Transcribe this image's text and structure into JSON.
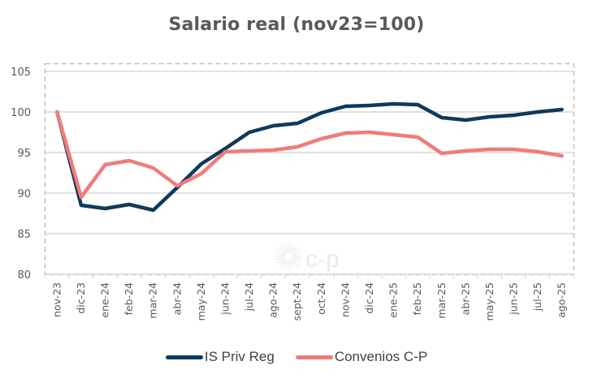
{
  "title": "Salario real (nov23=100)",
  "watermark": "c-p",
  "colors": {
    "is_priv_reg": "#0e3a5c",
    "convenios_cp": "#f07b7b",
    "grid": "#d9d9d9",
    "frame": "#bfbfbf",
    "text": "#595959"
  },
  "legend": [
    {
      "label": "IS Priv Reg",
      "color": "#0e3a5c"
    },
    {
      "label": "Convenios C-P",
      "color": "#f07b7b"
    }
  ],
  "chart_data": {
    "type": "line",
    "title": "Salario real (nov23=100)",
    "xlabel": "",
    "ylabel": "",
    "ylim": [
      80,
      105
    ],
    "yticks": [
      80,
      85,
      90,
      95,
      100,
      105
    ],
    "grid": true,
    "legend_position": "bottom",
    "categories": [
      "nov-23",
      "dic-23",
      "ene-24",
      "feb-24",
      "mar-24",
      "abr-24",
      "may-24",
      "jun-24",
      "jul-24",
      "ago-24",
      "sept-24",
      "oct-24",
      "nov-24",
      "dic-24",
      "ene-25",
      "feb-25",
      "mar-25",
      "abr-25",
      "may-25",
      "jun-25",
      "jul-25",
      "ago-25"
    ],
    "series": [
      {
        "name": "IS Priv Reg",
        "color": "#0e3a5c",
        "values": [
          100.0,
          88.5,
          88.1,
          88.6,
          87.9,
          90.7,
          93.6,
          95.5,
          97.5,
          98.3,
          98.6,
          99.9,
          100.7,
          100.8,
          101.0,
          100.9,
          99.3,
          99.0,
          99.4,
          99.6,
          100.0,
          100.3
        ]
      },
      {
        "name": "Convenios C-P",
        "color": "#f07b7b",
        "values": [
          100.0,
          89.5,
          93.5,
          94.0,
          93.1,
          90.9,
          92.4,
          95.1,
          95.2,
          95.3,
          95.7,
          96.7,
          97.4,
          97.5,
          97.2,
          96.9,
          94.9,
          95.2,
          95.4,
          95.4,
          95.1,
          94.6
        ]
      }
    ]
  }
}
